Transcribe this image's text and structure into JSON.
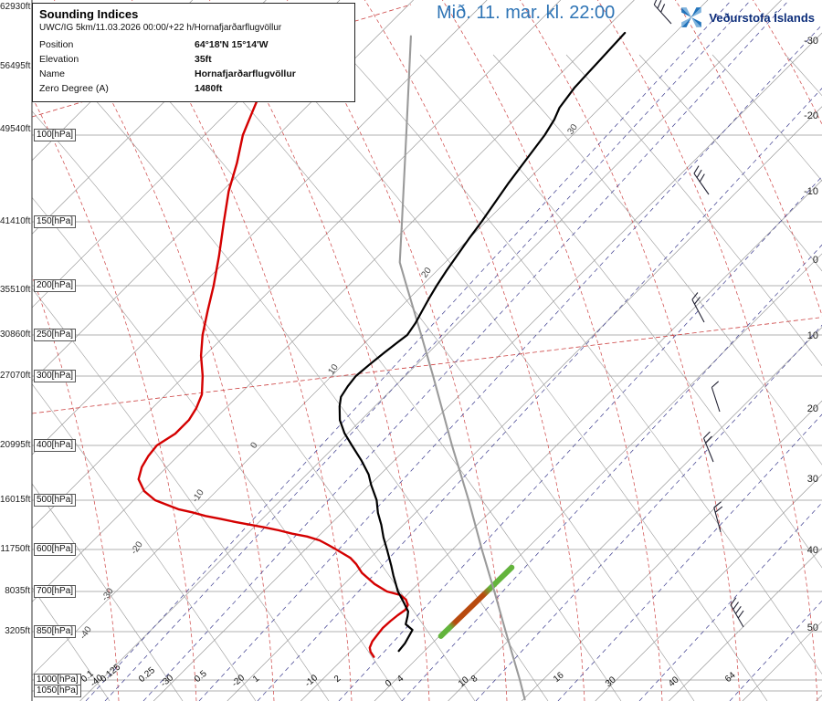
{
  "header": {
    "date_title": "Mið. 11. mar. kl. 22:00",
    "logo_text": "Veðurstofa Íslands",
    "title_color": "#2e74b5",
    "logo_star_dark": "#2374bb",
    "logo_star_light": "#7fb3dd"
  },
  "info_box": {
    "title": "Sounding Indices",
    "subtitle": "UWC/IG 5km/11.03.2026 00:00/+22 h/Hornafjarðarflugvöllur",
    "rows": [
      {
        "label": "Position",
        "value": "64°18'N 15°14'W"
      },
      {
        "label": "Elevation",
        "value": "35ft"
      },
      {
        "label": "Name",
        "value": "Hornafjarðarflugvöllur"
      },
      {
        "label": "Zero Degree (A)",
        "value": "1480ft"
      }
    ]
  },
  "chart_data": {
    "type": "skewt_log_p_sounding",
    "station": "Hornafjarðarflugvöllur",
    "pressure_labels": [
      {
        "label": "100[hPa]",
        "p": 100,
        "y": 148
      },
      {
        "label": "150[hPa]",
        "p": 150,
        "y": 243
      },
      {
        "label": "200[hPa]",
        "p": 200,
        "y": 313
      },
      {
        "label": "250[hPa]",
        "p": 250,
        "y": 367
      },
      {
        "label": "300[hPa]",
        "p": 300,
        "y": 412
      },
      {
        "label": "400[hPa]",
        "p": 400,
        "y": 488
      },
      {
        "label": "500[hPa]",
        "p": 500,
        "y": 548
      },
      {
        "label": "600[hPa]",
        "p": 600,
        "y": 602
      },
      {
        "label": "700[hPa]",
        "p": 700,
        "y": 648
      },
      {
        "label": "850[hPa]",
        "p": 850,
        "y": 692
      },
      {
        "label": "1000[hPa]",
        "p": 1000,
        "y": 745
      },
      {
        "label": "1050[hPa]",
        "p": 1050,
        "y": 757
      }
    ],
    "altitude_labels_ft": [
      {
        "text": "62930ft",
        "y": 8
      },
      {
        "text": "56495ft",
        "y": 73
      },
      {
        "text": "49540ft",
        "y": 142
      },
      {
        "text": "41410ft",
        "y": 243
      },
      {
        "text": "35510ft",
        "y": 318
      },
      {
        "text": "30860ft",
        "y": 367
      },
      {
        "text": "27070ft",
        "y": 412
      },
      {
        "text": "20995ft",
        "y": 488
      },
      {
        "text": "16015ft",
        "y": 548
      },
      {
        "text": "11750ft",
        "y": 602
      },
      {
        "text": "8035ft",
        "y": 648
      },
      {
        "text": "3205ft",
        "y": 692
      }
    ],
    "right_temp_labels": [
      {
        "text": "-30",
        "y": 45
      },
      {
        "text": "-20",
        "y": 127
      },
      {
        "text": "-10",
        "y": 210
      },
      {
        "text": "0",
        "y": 285
      },
      {
        "text": "10",
        "y": 368
      },
      {
        "text": "20",
        "y": 448
      },
      {
        "text": "30",
        "y": 525
      },
      {
        "text": "40",
        "y": 603
      },
      {
        "text": "50",
        "y": 688
      }
    ],
    "bottom_labels": {
      "mixing_ratio": [
        {
          "text": "0.1",
          "x": 94
        },
        {
          "text": "0.125",
          "x": 115
        },
        {
          "text": "0.25",
          "x": 157
        },
        {
          "text": "0.5",
          "x": 218
        },
        {
          "text": "1",
          "x": 282
        },
        {
          "text": "2",
          "x": 371
        },
        {
          "text": "4",
          "x": 440
        },
        {
          "text": "8",
          "x": 521
        },
        {
          "text": "16",
          "x": 611
        },
        {
          "text": "64",
          "x": 799
        }
      ],
      "isotherms": [
        {
          "text": "-40",
          "x": 104
        },
        {
          "text": "-30",
          "x": 181
        },
        {
          "text": "-20",
          "x": 259
        },
        {
          "text": "-10",
          "x": 339
        },
        {
          "text": "0",
          "x": 427
        },
        {
          "text": "10",
          "x": 507
        },
        {
          "text": "30",
          "x": 668
        },
        {
          "text": "40",
          "x": 737
        }
      ]
    },
    "theta_labels": [
      {
        "text": "-40",
        "x": 90,
        "y": 694
      },
      {
        "text": "-30",
        "x": 114,
        "y": 652
      },
      {
        "text": "-20",
        "x": 146,
        "y": 601
      },
      {
        "text": "-10",
        "x": 213,
        "y": 544
      },
      {
        "text": "0",
        "x": 277,
        "y": 485
      },
      {
        "text": "10",
        "x": 362,
        "y": 404
      },
      {
        "text": "20",
        "x": 464,
        "y": 298
      },
      {
        "text": "30",
        "x": 624,
        "y": 141
      }
    ],
    "mixing_line_x": [
      94,
      115,
      157,
      218,
      282,
      371,
      440,
      521,
      611,
      700,
      799
    ],
    "series": {
      "temperature": {
        "name": "Temperature (black)",
        "color": "#000000",
        "points": [
          [
            907,
            -3.5
          ],
          [
            884,
            -3.7
          ],
          [
            843,
            -4.5
          ],
          [
            820,
            -6.2
          ],
          [
            790,
            -7.0
          ],
          [
            771,
            -7.6
          ],
          [
            735,
            -9.6
          ],
          [
            700,
            -11.7
          ],
          [
            660,
            -14.5
          ],
          [
            637,
            -16.1
          ],
          [
            600,
            -18.9
          ],
          [
            574,
            -21.0
          ],
          [
            548,
            -23.0
          ],
          [
            524,
            -25.1
          ],
          [
            500,
            -27.0
          ],
          [
            470,
            -29.8
          ],
          [
            450,
            -31.6
          ],
          [
            425,
            -34.5
          ],
          [
            400,
            -37.8
          ],
          [
            380,
            -40.5
          ],
          [
            360,
            -42.9
          ],
          [
            340,
            -44.8
          ],
          [
            327,
            -45.9
          ],
          [
            313,
            -46.4
          ],
          [
            300,
            -46.7
          ],
          [
            285,
            -46.4
          ],
          [
            270,
            -46.0
          ],
          [
            258,
            -45.6
          ],
          [
            250,
            -45.3
          ],
          [
            237,
            -45.8
          ],
          [
            225,
            -46.5
          ],
          [
            212,
            -47.3
          ],
          [
            200,
            -48.0
          ],
          [
            187,
            -48.7
          ],
          [
            175,
            -49.3
          ],
          [
            162,
            -50.0
          ],
          [
            150,
            -50.6
          ],
          [
            137,
            -51.4
          ],
          [
            125,
            -52.2
          ],
          [
            112,
            -53.0
          ],
          [
            100,
            -53.8
          ],
          [
            93,
            -54.6
          ],
          [
            88,
            -55.5
          ],
          [
            80,
            -56.2
          ],
          [
            70,
            -56.5
          ],
          [
            62,
            -56.8
          ]
        ]
      },
      "dewpoint": {
        "name": "Dewpoint (red)",
        "color": "#d40000",
        "points": [
          [
            925,
            -6.1
          ],
          [
            910,
            -7.2
          ],
          [
            897,
            -7.9
          ],
          [
            878,
            -8.4
          ],
          [
            860,
            -8.6
          ],
          [
            835,
            -8.8
          ],
          [
            808,
            -8.7
          ],
          [
            785,
            -8.5
          ],
          [
            765,
            -8.2
          ],
          [
            748,
            -8.5
          ],
          [
            728,
            -9.5
          ],
          [
            712,
            -10.9
          ],
          [
            700,
            -13.2
          ],
          [
            681,
            -15.9
          ],
          [
            654,
            -19.1
          ],
          [
            633,
            -21.1
          ],
          [
            619,
            -22.7
          ],
          [
            600,
            -25.8
          ],
          [
            590,
            -27.5
          ],
          [
            580,
            -29.3
          ],
          [
            572,
            -31.5
          ],
          [
            566,
            -33.9
          ],
          [
            559,
            -36.2
          ],
          [
            553,
            -38.5
          ],
          [
            542,
            -43.2
          ],
          [
            536,
            -45.6
          ],
          [
            530,
            -48.1
          ],
          [
            523,
            -50.4
          ],
          [
            517,
            -52.7
          ],
          [
            508,
            -55.0
          ],
          [
            500,
            -57.1
          ],
          [
            482,
            -59.8
          ],
          [
            459,
            -62.2
          ],
          [
            437,
            -63.4
          ],
          [
            418,
            -64.0
          ],
          [
            400,
            -64.3
          ],
          [
            381,
            -63.4
          ],
          [
            360,
            -63.4
          ],
          [
            343,
            -64.0
          ],
          [
            324,
            -65.1
          ],
          [
            300,
            -67.5
          ],
          [
            274,
            -70.5
          ],
          [
            250,
            -73.1
          ],
          [
            224,
            -75.7
          ],
          [
            200,
            -78.3
          ],
          [
            175,
            -81.6
          ],
          [
            150,
            -85.6
          ],
          [
            130,
            -89.1
          ],
          [
            114,
            -91.8
          ],
          [
            100,
            -94.8
          ],
          [
            89,
            -96.8
          ],
          [
            80,
            -98.6
          ],
          [
            70,
            -101.1
          ],
          [
            62,
            -103.8
          ],
          [
            55,
            -106.6
          ]
        ]
      },
      "parcel": {
        "name": "Parcel path (gray)",
        "color": "#9a9a9a",
        "points": [
          [
            1090,
            20.2
          ],
          [
            1000,
            16.9
          ],
          [
            850,
            8.4
          ],
          [
            700,
            1.4
          ],
          [
            600,
            -6.0
          ],
          [
            500,
            -14.5
          ],
          [
            400,
            -24.2
          ],
          [
            300,
            -36.2
          ],
          [
            250,
            -43.4
          ],
          [
            200,
            -52.1
          ],
          [
            180,
            -56.2
          ],
          [
            150,
            -61.4
          ],
          [
            100,
            -72.6
          ],
          [
            63,
            -85.4
          ]
        ]
      }
    },
    "highlight_layer": {
      "from": {
        "p": 863,
        "t": 0.2
      },
      "to": {
        "p": 641,
        "t": 0.5
      },
      "colors": [
        "#63b43c",
        "#b84a0e",
        "#63b43c"
      ]
    },
    "wind_barbs": [
      {
        "x": 735,
        "y": 26,
        "rot": -42,
        "ticks": 3
      },
      {
        "x": 776,
        "y": 213,
        "rot": -35,
        "ticks": 3
      },
      {
        "x": 771,
        "y": 353,
        "rot": -28,
        "ticks": 2
      },
      {
        "x": 788,
        "y": 451,
        "rot": -18,
        "ticks": 1
      },
      {
        "x": 781,
        "y": 506,
        "rot": -22,
        "ticks": 2
      },
      {
        "x": 789,
        "y": 583,
        "rot": -15,
        "ticks": 2
      },
      {
        "x": 814,
        "y": 687,
        "rot": -30,
        "ticks": 4
      }
    ],
    "grid_colors": {
      "isobar": "#999999",
      "isotherm": "#8c8c8c",
      "dry_adiabat": "#9b9b9b",
      "moist_adiabat": "#cc4040",
      "mixing_ratio": "#3c3c8e"
    }
  }
}
